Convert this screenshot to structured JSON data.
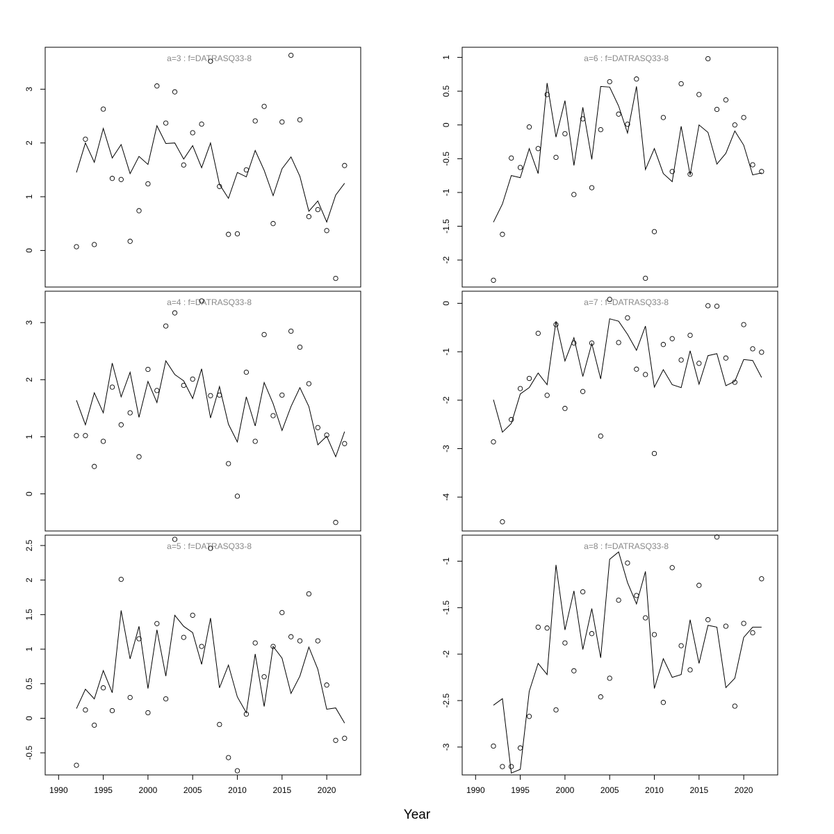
{
  "figure": {
    "xlabel": "Year"
  },
  "chart_data": [
    {
      "type": "scatter",
      "title": "a=3  :  f=DATRASQ33-8",
      "xlim": [
        1988.5,
        2023.8
      ],
      "ylim": [
        -0.68,
        3.78
      ],
      "yticks": [
        0,
        1,
        2,
        3
      ],
      "xticks": [],
      "x": [
        1992,
        1993,
        1994,
        1995,
        1996,
        1997,
        1998,
        1999,
        2000,
        2001,
        2002,
        2003,
        2004,
        2005,
        2006,
        2007,
        2008,
        2009,
        2010,
        2011,
        2012,
        2013,
        2014,
        2015,
        2016,
        2017,
        2018,
        2019,
        2020,
        2021,
        2022
      ],
      "points": [
        0.07,
        2.07,
        0.11,
        2.63,
        1.34,
        1.32,
        0.17,
        0.74,
        1.24,
        3.06,
        2.37,
        2.95,
        1.59,
        2.19,
        2.35,
        3.52,
        1.19,
        0.3,
        0.31,
        1.5,
        2.41,
        2.68,
        0.5,
        2.39,
        3.63,
        2.43,
        0.63,
        0.76,
        0.37,
        -0.52,
        1.58
      ],
      "line": [
        1.45,
        2.0,
        1.64,
        2.27,
        1.72,
        1.97,
        1.43,
        1.75,
        1.6,
        2.32,
        1.99,
        2.0,
        1.7,
        1.95,
        1.54,
        2.0,
        1.23,
        0.97,
        1.45,
        1.37,
        1.86,
        1.49,
        1.02,
        1.52,
        1.74,
        1.38,
        0.73,
        0.92,
        0.53,
        1.03,
        1.25
      ]
    },
    {
      "type": "scatter",
      "title": "a=4  :  f=DATRASQ33-8",
      "xlim": [
        1988.5,
        2023.8
      ],
      "ylim": [
        -0.65,
        3.55
      ],
      "yticks": [
        0,
        1,
        2,
        3
      ],
      "xticks": [],
      "x": [
        1992,
        1993,
        1994,
        1995,
        1996,
        1997,
        1998,
        1999,
        2000,
        2001,
        2002,
        2003,
        2004,
        2005,
        2006,
        2007,
        2008,
        2009,
        2010,
        2011,
        2012,
        2013,
        2014,
        2015,
        2016,
        2017,
        2018,
        2019,
        2020,
        2021,
        2022
      ],
      "points": [
        1.02,
        1.02,
        0.48,
        0.92,
        1.87,
        1.21,
        1.42,
        0.65,
        2.18,
        1.81,
        2.94,
        3.17,
        1.9,
        2.01,
        3.38,
        1.72,
        1.73,
        0.53,
        -0.04,
        2.13,
        0.92,
        2.79,
        1.37,
        1.73,
        2.85,
        2.57,
        1.93,
        1.16,
        1.03,
        -0.5,
        0.88
      ],
      "line": [
        1.64,
        1.21,
        1.77,
        1.42,
        2.29,
        1.7,
        2.13,
        1.34,
        1.97,
        1.6,
        2.33,
        2.09,
        1.98,
        1.67,
        2.19,
        1.33,
        1.88,
        1.22,
        0.91,
        1.7,
        1.19,
        1.95,
        1.58,
        1.11,
        1.53,
        1.86,
        1.53,
        0.86,
        1.01,
        0.65,
        1.09
      ]
    },
    {
      "type": "scatter",
      "title": "a=5  :  f=DATRASQ33-8",
      "xlim": [
        1988.5,
        2023.8
      ],
      "ylim": [
        -0.82,
        2.65
      ],
      "yticks": [
        -0.5,
        0.0,
        0.5,
        1.0,
        1.5,
        2.0,
        2.5
      ],
      "xticks": [
        1990,
        1995,
        2000,
        2005,
        2010,
        2015,
        2020
      ],
      "x": [
        1992,
        1993,
        1994,
        1995,
        1996,
        1997,
        1998,
        1999,
        2000,
        2001,
        2002,
        2003,
        2004,
        2005,
        2006,
        2007,
        2008,
        2009,
        2010,
        2011,
        2012,
        2013,
        2014,
        2015,
        2016,
        2017,
        2018,
        2019,
        2020,
        2021,
        2022
      ],
      "points": [
        -0.68,
        0.12,
        -0.1,
        0.44,
        0.11,
        2.01,
        0.3,
        1.15,
        0.08,
        1.37,
        0.28,
        2.59,
        1.17,
        1.49,
        1.04,
        2.46,
        -0.09,
        -0.57,
        -0.76,
        0.06,
        1.09,
        0.6,
        1.04,
        1.53,
        1.18,
        1.12,
        1.8,
        1.12,
        0.48,
        -0.32,
        -0.29
      ],
      "line": [
        0.14,
        0.42,
        0.28,
        0.69,
        0.37,
        1.56,
        0.86,
        1.33,
        0.43,
        1.28,
        0.61,
        1.49,
        1.33,
        1.24,
        0.78,
        1.45,
        0.44,
        0.77,
        0.31,
        0.08,
        0.93,
        0.17,
        1.04,
        0.87,
        0.36,
        0.61,
        1.03,
        0.71,
        0.13,
        0.15,
        -0.07
      ]
    },
    {
      "type": "scatter",
      "title": "a=6  :  f=DATRASQ33-8",
      "xlim": [
        1988.5,
        2023.8
      ],
      "ylim": [
        -2.4,
        1.15
      ],
      "yticks": [
        -2.0,
        -1.5,
        -1.0,
        -0.5,
        0.0,
        0.5,
        1.0
      ],
      "xticks": [],
      "x": [
        1992,
        1993,
        1994,
        1995,
        1996,
        1997,
        1998,
        1999,
        2000,
        2001,
        2002,
        2003,
        2004,
        2005,
        2006,
        2007,
        2008,
        2009,
        2010,
        2011,
        2012,
        2013,
        2014,
        2015,
        2016,
        2017,
        2018,
        2019,
        2020,
        2021,
        2022
      ],
      "points": [
        -2.3,
        -1.62,
        -0.49,
        -0.63,
        -0.03,
        -0.35,
        0.45,
        -0.48,
        -0.13,
        -1.03,
        0.09,
        -0.93,
        -0.07,
        0.64,
        0.16,
        0.01,
        0.68,
        -2.27,
        -1.58,
        0.11,
        -0.69,
        0.61,
        -0.73,
        0.45,
        0.98,
        0.23,
        0.37,
        0.0,
        0.11,
        -0.59,
        -0.69
      ],
      "line": [
        -1.44,
        -1.17,
        -0.75,
        -0.78,
        -0.35,
        -0.72,
        0.62,
        -0.18,
        0.36,
        -0.6,
        0.26,
        -0.51,
        0.57,
        0.56,
        0.28,
        -0.12,
        0.57,
        -0.66,
        -0.35,
        -0.72,
        -0.84,
        -0.02,
        -0.74,
        0.0,
        -0.11,
        -0.58,
        -0.42,
        -0.09,
        -0.3,
        -0.74,
        -0.71
      ]
    },
    {
      "type": "scatter",
      "title": "a=7  :  f=DATRASQ33-8",
      "xlim": [
        1988.5,
        2023.8
      ],
      "ylim": [
        -4.7,
        0.25
      ],
      "yticks": [
        -4,
        -3,
        -2,
        -1,
        0
      ],
      "xticks": [],
      "x": [
        1992,
        1993,
        1994,
        1995,
        1996,
        1997,
        1998,
        1999,
        2000,
        2001,
        2002,
        2003,
        2004,
        2005,
        2006,
        2007,
        2008,
        2009,
        2010,
        2011,
        2012,
        2013,
        2014,
        2015,
        2016,
        2017,
        2018,
        2019,
        2020,
        2021,
        2022
      ],
      "points": [
        -2.86,
        -4.51,
        -2.4,
        -1.76,
        -1.55,
        -0.62,
        -1.9,
        -0.44,
        -2.17,
        -0.82,
        -1.82,
        -0.82,
        -2.74,
        0.08,
        -0.81,
        -0.3,
        -1.36,
        -1.47,
        -3.1,
        -0.85,
        -0.73,
        -1.17,
        -0.66,
        -1.24,
        -0.05,
        -0.06,
        -1.13,
        -1.63,
        -0.44,
        -0.94,
        -1.01
      ],
      "line": [
        -1.99,
        -2.66,
        -2.48,
        -1.87,
        -1.74,
        -1.44,
        -1.68,
        -0.37,
        -1.19,
        -0.71,
        -1.51,
        -0.83,
        -1.56,
        -0.32,
        -0.37,
        -0.64,
        -0.97,
        -0.47,
        -1.73,
        -1.37,
        -1.68,
        -1.74,
        -0.98,
        -1.67,
        -1.08,
        -1.04,
        -1.7,
        -1.61,
        -1.16,
        -1.18,
        -1.53
      ]
    },
    {
      "type": "scatter",
      "title": "a=8  :  f=DATRASQ33-8",
      "xlim": [
        1988.5,
        2023.8
      ],
      "ylim": [
        -3.3,
        -0.72
      ],
      "yticks": [
        -3.0,
        -2.5,
        -2.0,
        -1.5,
        -1.0
      ],
      "xticks": [
        1990,
        1995,
        2000,
        2005,
        2010,
        2015,
        2020
      ],
      "x": [
        1992,
        1993,
        1994,
        1995,
        1996,
        1997,
        1998,
        1999,
        2000,
        2001,
        2002,
        2003,
        2004,
        2005,
        2006,
        2007,
        2008,
        2009,
        2010,
        2011,
        2012,
        2013,
        2014,
        2015,
        2016,
        2017,
        2018,
        2019,
        2020,
        2021,
        2022
      ],
      "points": [
        -2.99,
        -3.21,
        -3.21,
        -3.01,
        -2.67,
        -1.71,
        -1.72,
        -2.6,
        -1.88,
        -2.18,
        -1.33,
        -1.78,
        -2.46,
        -2.26,
        -1.42,
        -1.02,
        -1.37,
        -1.61,
        -1.79,
        -2.52,
        -1.07,
        -1.91,
        -2.17,
        -1.26,
        -1.63,
        -0.74,
        -1.7,
        -2.56,
        -1.67,
        -1.77,
        -1.19
      ],
      "line": [
        -2.55,
        -2.48,
        -3.28,
        -3.24,
        -2.4,
        -2.1,
        -2.22,
        -1.04,
        -1.74,
        -1.32,
        -1.95,
        -1.51,
        -2.04,
        -0.98,
        -0.9,
        -1.23,
        -1.46,
        -1.11,
        -2.37,
        -2.05,
        -2.25,
        -2.22,
        -1.63,
        -2.1,
        -1.69,
        -1.71,
        -2.36,
        -2.26,
        -1.82,
        -1.71,
        -1.71
      ]
    }
  ]
}
